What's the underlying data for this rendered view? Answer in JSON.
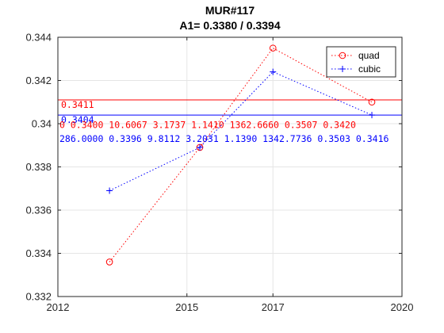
{
  "chart_data": {
    "type": "line",
    "title": "MUR#117",
    "subtitle": "A1= 0.3380 / 0.3394",
    "xlabel": "",
    "ylabel": "",
    "xlim": [
      2012,
      2020
    ],
    "ylim": [
      0.332,
      0.344
    ],
    "xticks": [
      2012,
      2015,
      2017,
      2020
    ],
    "xtick_labels": [
      "2012",
      "2015",
      "2017",
      "2020"
    ],
    "yticks": [
      0.332,
      0.334,
      0.336,
      0.338,
      0.34,
      0.342,
      0.344
    ],
    "ytick_labels": [
      "0.332",
      "0.334",
      "0.336",
      "0.338",
      "0.34",
      "0.342",
      "0.344"
    ],
    "grid": true,
    "legend_position": "top-right",
    "series": [
      {
        "name": "quad",
        "color": "#ff0000",
        "marker": "circle",
        "line_style": "dotted",
        "x": [
          2013.2,
          2015.3,
          2017.0,
          2019.3
        ],
        "y": [
          0.3336,
          0.3389,
          0.3435,
          0.341
        ]
      },
      {
        "name": "cubic",
        "color": "#0000ff",
        "marker": "plus",
        "line_style": "dotted",
        "x": [
          2013.2,
          2015.3,
          2017.0,
          2019.3
        ],
        "y": [
          0.3369,
          0.3389,
          0.3424,
          0.3404
        ]
      }
    ],
    "hlines": [
      {
        "y": 0.3411,
        "color": "#ff0000",
        "label": "0.3411"
      },
      {
        "y": 0.3404,
        "color": "#0000ff",
        "label": "0.3404"
      }
    ],
    "annotations": [
      {
        "text": "0  0.3400  10.6067  3.1737  1.1410  1362.6660  0.3507  0.3420",
        "color": "#ff0000"
      },
      {
        "text": "286.0000  0.3396  9.8112  3.2031  1.1390  1342.7736  0.3503  0.3416",
        "color": "#0000ff"
      }
    ]
  }
}
